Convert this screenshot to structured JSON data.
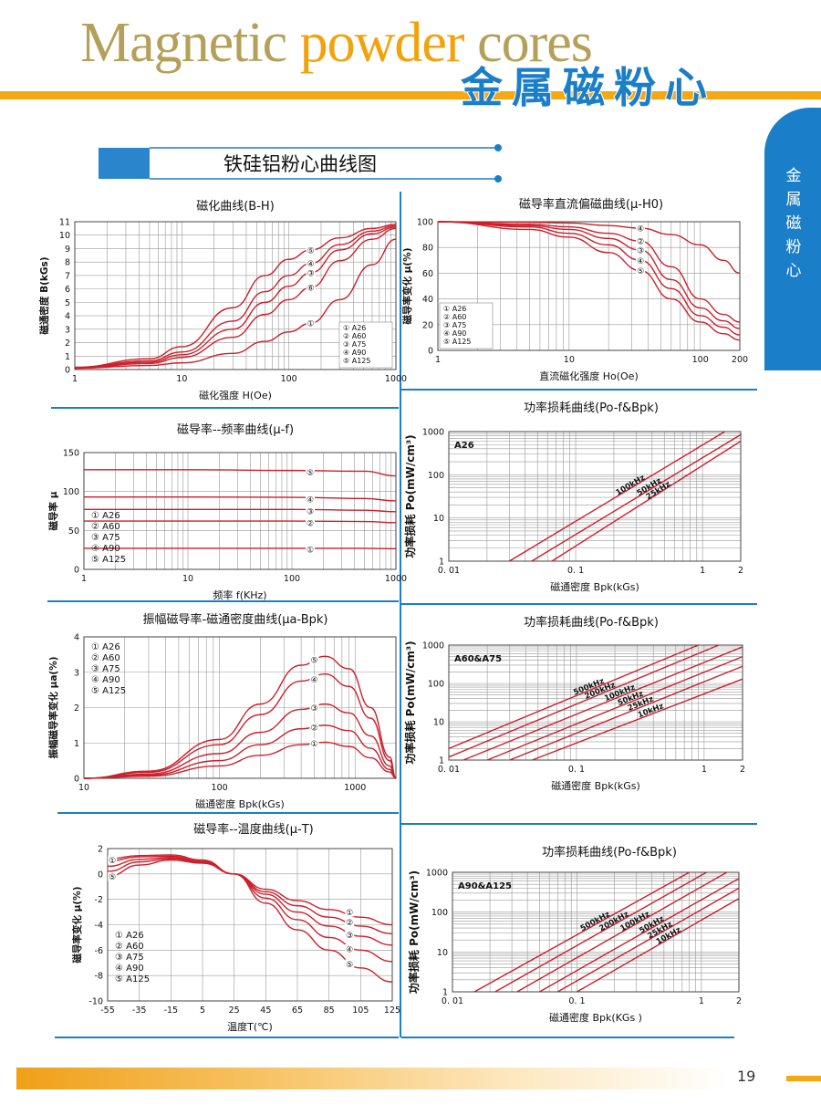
{
  "header": {
    "title_en_1": "Magnetic ",
    "title_en_2": "powder",
    "title_en_3": " cores",
    "title_cn": "金属磁粉心"
  },
  "side_tab": "金属磁粉心",
  "section_title": "铁硅铝粉心曲线图",
  "page_number": "19",
  "colors": {
    "curve": "#cc1f2b",
    "grid": "#999999",
    "accent": "#1a7fc8",
    "orange": "#f5a814"
  },
  "charts": [
    {
      "id": "bh",
      "type": "line",
      "title": "磁化曲线(B-H)",
      "xlabel": "磁化强度  H(Oe)",
      "ylabel": "磁通密度 B(kGs)",
      "xscale": "log",
      "xlim": [
        1,
        1000
      ],
      "ylim": [
        0,
        11
      ],
      "xticks": [
        "1",
        "10",
        "100",
        "1000"
      ],
      "yticks": [
        "0",
        "1",
        "2",
        "3",
        "4",
        "5",
        "6",
        "7",
        "8",
        "9",
        "10",
        "11"
      ],
      "legend": [
        "① A26",
        "② A60",
        "③ A75",
        "④ A90",
        "⑤ A125"
      ],
      "markers": [
        {
          "label": "①",
          "x": 160,
          "y": 3.45
        },
        {
          "label": "⑥",
          "x": 160,
          "y": 6.1
        },
        {
          "label": "③",
          "x": 160,
          "y": 7.2
        },
        {
          "label": "④",
          "x": 160,
          "y": 7.9
        },
        {
          "label": "⑤",
          "x": 160,
          "y": 8.9
        }
      ],
      "series": [
        {
          "name": "A26",
          "x": [
            1,
            5,
            10,
            30,
            60,
            100,
            160,
            300,
            600,
            1000
          ],
          "y": [
            0.1,
            0.3,
            0.5,
            1.2,
            2.1,
            2.8,
            3.45,
            5.2,
            7.8,
            9.7
          ]
        },
        {
          "name": "A60",
          "x": [
            1,
            5,
            10,
            30,
            60,
            100,
            160,
            300,
            600,
            1000
          ],
          "y": [
            0.1,
            0.45,
            0.9,
            2.4,
            4.1,
            5.2,
            6.1,
            8.1,
            9.7,
            10.5
          ]
        },
        {
          "name": "A75",
          "x": [
            1,
            5,
            10,
            30,
            60,
            100,
            160,
            300,
            600,
            1000
          ],
          "y": [
            0.12,
            0.55,
            1.1,
            3.0,
            5.0,
            6.2,
            7.2,
            8.9,
            10.1,
            10.6
          ]
        },
        {
          "name": "A90",
          "x": [
            1,
            5,
            10,
            30,
            60,
            100,
            160,
            300,
            600,
            1000
          ],
          "y": [
            0.14,
            0.65,
            1.3,
            3.6,
            5.8,
            7.0,
            7.9,
            9.3,
            10.3,
            10.7
          ]
        },
        {
          "name": "A125",
          "x": [
            1,
            5,
            10,
            30,
            60,
            100,
            160,
            300,
            600,
            1000
          ],
          "y": [
            0.17,
            0.8,
            1.7,
            4.6,
            7.0,
            8.2,
            8.9,
            9.8,
            10.5,
            10.8
          ]
        }
      ]
    },
    {
      "id": "mu_h",
      "type": "line",
      "title": "磁导率直流偏磁曲线(μ-H0)",
      "xlabel": "直流磁化强度   Ho(Oe)",
      "ylabel": "磁导率变化 μ(%)",
      "xscale": "log",
      "xlim": [
        1,
        200
      ],
      "ylim": [
        0,
        100
      ],
      "xticks": [
        "1",
        "10",
        "100",
        "200"
      ],
      "yticks": [
        "0",
        "20",
        "40",
        "60",
        "80",
        "100"
      ],
      "legend": [
        "① A26",
        "② A60",
        "③ A75",
        "④ A90",
        "⑤ A125"
      ],
      "markers": [
        {
          "label": "④",
          "x": 35,
          "y": 95
        },
        {
          "label": "②",
          "x": 35,
          "y": 85
        },
        {
          "label": "③",
          "x": 35,
          "y": 78
        },
        {
          "label": "④",
          "x": 35,
          "y": 70
        },
        {
          "label": "⑤",
          "x": 35,
          "y": 62
        }
      ],
      "series": [
        {
          "name": "A26",
          "x": [
            1,
            5,
            10,
            20,
            35,
            60,
            100,
            150,
            200
          ],
          "y": [
            100,
            99.5,
            99,
            97,
            95,
            90,
            82,
            70,
            60
          ]
        },
        {
          "name": "A60",
          "x": [
            1,
            5,
            10,
            20,
            35,
            60,
            100,
            150,
            200
          ],
          "y": [
            100,
            98,
            96,
            91,
            85,
            65,
            40,
            28,
            22
          ]
        },
        {
          "name": "A75",
          "x": [
            1,
            5,
            10,
            20,
            35,
            60,
            100,
            150,
            200
          ],
          "y": [
            100,
            97,
            94,
            87,
            78,
            55,
            33,
            23,
            17
          ]
        },
        {
          "name": "A90",
          "x": [
            1,
            5,
            10,
            20,
            35,
            60,
            100,
            150,
            200
          ],
          "y": [
            100,
            96,
            91,
            82,
            70,
            48,
            27,
            18,
            12
          ]
        },
        {
          "name": "A125",
          "x": [
            1,
            5,
            10,
            20,
            35,
            60,
            100,
            150,
            200
          ],
          "y": [
            100,
            94,
            88,
            76,
            62,
            40,
            22,
            13,
            8
          ]
        }
      ]
    },
    {
      "id": "mu_f",
      "type": "line",
      "title": "磁导率--频率曲线(μ-f)",
      "xlabel": "频率 f(KHz)",
      "ylabel": "磁导率 μ",
      "xscale": "log",
      "xlim": [
        1,
        1000
      ],
      "ylim": [
        0,
        150
      ],
      "xticks": [
        "1",
        "10",
        "100",
        "1000"
      ],
      "yticks": [
        "0",
        "50",
        "100",
        "150"
      ],
      "legend": [
        "① A26",
        "② A60",
        "③ A75",
        "④ A90",
        "⑤ A125"
      ],
      "markers": [
        {
          "label": "⑤",
          "x": 150,
          "y": 125
        },
        {
          "label": "④",
          "x": 150,
          "y": 90
        },
        {
          "label": "③",
          "x": 150,
          "y": 75
        },
        {
          "label": "②",
          "x": 150,
          "y": 60
        },
        {
          "label": "①",
          "x": 150,
          "y": 26
        }
      ],
      "series": [
        {
          "name": "A125",
          "x": [
            1,
            10,
            100,
            500,
            1000
          ],
          "y": [
            128,
            128,
            127,
            126,
            120
          ]
        },
        {
          "name": "A90",
          "x": [
            1,
            10,
            100,
            500,
            1000
          ],
          "y": [
            93,
            93,
            92.5,
            91,
            88
          ]
        },
        {
          "name": "A75",
          "x": [
            1,
            10,
            100,
            500,
            1000
          ],
          "y": [
            77,
            77,
            77,
            76,
            74
          ]
        },
        {
          "name": "A60",
          "x": [
            1,
            10,
            100,
            500,
            1000
          ],
          "y": [
            62,
            62,
            62,
            61.5,
            60
          ]
        },
        {
          "name": "A26",
          "x": [
            1,
            10,
            100,
            500,
            1000
          ],
          "y": [
            27,
            27,
            27,
            27,
            26.5
          ]
        }
      ]
    },
    {
      "id": "pl_a26",
      "type": "line",
      "title": "功率损耗曲线(Po-f&Bpk)",
      "xlabel": "磁通密度     Bpk(kGs)",
      "ylabel": "功率损耗 Po(mW/cm³)",
      "xscale": "log",
      "yscale": "log",
      "xlim": [
        0.01,
        2
      ],
      "ylim": [
        1,
        1000
      ],
      "xticks": [
        "0. 01",
        "0. 1",
        "1",
        "2"
      ],
      "yticks": [
        "1",
        "10",
        "100",
        "1000"
      ],
      "inner_label": "A26",
      "series": [
        {
          "name": "100kHz",
          "x": [
            0.03,
            1.5
          ],
          "y": [
            1,
            1000
          ]
        },
        {
          "name": "50kHz",
          "x": [
            0.045,
            2
          ],
          "y": [
            1,
            850
          ]
        },
        {
          "name": "25kHz",
          "x": [
            0.065,
            2
          ],
          "y": [
            1,
            600
          ]
        }
      ]
    },
    {
      "id": "mua",
      "type": "line",
      "title": "振幅磁导率-磁通密度曲线(μa-Bpk)",
      "xlabel": "磁通密度     Bpk(kGs)",
      "ylabel": "振幅磁导率变化 μa(%)",
      "xscale": "log",
      "xlim": [
        10,
        2000
      ],
      "ylim": [
        0,
        4
      ],
      "xticks": [
        "10",
        "100",
        "1000"
      ],
      "yticks": [
        "0",
        "1",
        "2",
        "3",
        "4"
      ],
      "legend": [
        "① A26",
        "② A60",
        "③ A75",
        "④ A90",
        "⑤ A125"
      ],
      "markers": [
        {
          "label": "⑤",
          "x": 500,
          "y": 3.35
        },
        {
          "label": "④",
          "x": 500,
          "y": 2.8
        },
        {
          "label": "③",
          "x": 500,
          "y": 2.0
        },
        {
          "label": "②",
          "x": 500,
          "y": 1.45
        },
        {
          "label": "①",
          "x": 500,
          "y": 1.0
        }
      ],
      "series": [
        {
          "name": "A125",
          "x": [
            10,
            30,
            100,
            200,
            400,
            600,
            900,
            1300,
            1800,
            2000
          ],
          "y": [
            0,
            0.2,
            1.1,
            2.1,
            3.2,
            3.45,
            3.1,
            2.0,
            0.6,
            0
          ]
        },
        {
          "name": "A90",
          "x": [
            10,
            30,
            100,
            200,
            400,
            600,
            900,
            1300,
            1800,
            2000
          ],
          "y": [
            0,
            0.17,
            0.95,
            1.8,
            2.75,
            2.95,
            2.6,
            1.7,
            0.5,
            0
          ]
        },
        {
          "name": "A75",
          "x": [
            10,
            30,
            100,
            200,
            400,
            600,
            900,
            1300,
            1800,
            2000
          ],
          "y": [
            0,
            0.12,
            0.7,
            1.3,
            1.95,
            2.1,
            1.85,
            1.2,
            0.35,
            0
          ]
        },
        {
          "name": "A60",
          "x": [
            10,
            30,
            100,
            200,
            400,
            600,
            900,
            1300,
            1800,
            2000
          ],
          "y": [
            0,
            0.09,
            0.5,
            0.95,
            1.4,
            1.5,
            1.35,
            0.85,
            0.25,
            0
          ]
        },
        {
          "name": "A26",
          "x": [
            10,
            30,
            100,
            200,
            400,
            600,
            900,
            1300,
            1800,
            2000
          ],
          "y": [
            0,
            0.06,
            0.35,
            0.65,
            0.95,
            1.02,
            0.9,
            0.58,
            0.18,
            0
          ]
        }
      ]
    },
    {
      "id": "pl_a60",
      "type": "line",
      "title": "功率损耗曲线(Po-f&Bpk)",
      "xlabel": "磁通密度     Bpk(kGs)",
      "ylabel": "功率损耗 Po(mW/cm³)",
      "xscale": "log",
      "yscale": "log",
      "xlim": [
        0.01,
        2
      ],
      "ylim": [
        1,
        1000
      ],
      "xticks": [
        "0. 01",
        "0. 1",
        "1",
        "2"
      ],
      "yticks": [
        "1",
        "10",
        "100",
        "1000"
      ],
      "inner_label": "A60&A75",
      "series": [
        {
          "name": "500kHz",
          "x": [
            0.01,
            0.9
          ],
          "y": [
            2,
            1000
          ]
        },
        {
          "name": "200kHz",
          "x": [
            0.01,
            1.3
          ],
          "y": [
            1.2,
            1000
          ]
        },
        {
          "name": "100kHz",
          "x": [
            0.013,
            2
          ],
          "y": [
            1,
            900
          ]
        },
        {
          "name": "50kHz",
          "x": [
            0.02,
            2
          ],
          "y": [
            1,
            500
          ]
        },
        {
          "name": "25kHz",
          "x": [
            0.03,
            2
          ],
          "y": [
            1,
            280
          ]
        },
        {
          "name": "10kHz",
          "x": [
            0.045,
            2
          ],
          "y": [
            1,
            130
          ]
        }
      ]
    },
    {
      "id": "mu_t",
      "type": "line",
      "title": "磁导率--温度曲线(μ-T)",
      "xlabel": "温度T(℃)",
      "ylabel": "磁导率变化 μ(%)",
      "xlim": [
        -55,
        125
      ],
      "ylim": [
        -10,
        2
      ],
      "xticks": [
        "-55",
        "-35",
        "-15",
        "5",
        "25",
        "45",
        "65",
        "85",
        "105",
        "125"
      ],
      "yticks": [
        "-10",
        "-8",
        "-6",
        "-4",
        "-2",
        "0",
        "2"
      ],
      "legend": [
        "① A26",
        "② A60",
        "③ A75",
        "④ A90",
        "⑤ A125"
      ],
      "markers": [
        {
          "label": "①",
          "x": -52,
          "y": 1.1
        },
        {
          "label": "⑤",
          "x": -52,
          "y": -0.2
        },
        {
          "label": "①",
          "x": 98,
          "y": -3.0
        },
        {
          "label": "②",
          "x": 98,
          "y": -3.8
        },
        {
          "label": "③",
          "x": 98,
          "y": -4.8
        },
        {
          "label": "④",
          "x": 98,
          "y": -5.9
        },
        {
          "label": "⑤",
          "x": 98,
          "y": -7.1
        }
      ],
      "series": [
        {
          "name": "A26",
          "x": [
            -55,
            -35,
            -15,
            5,
            25,
            45,
            65,
            85,
            105,
            125
          ],
          "y": [
            1.2,
            1.45,
            1.5,
            1.1,
            0,
            -1.2,
            -2.1,
            -2.8,
            -3.4,
            -4.0
          ]
        },
        {
          "name": "A60",
          "x": [
            -55,
            -35,
            -15,
            5,
            25,
            45,
            65,
            85,
            105,
            125
          ],
          "y": [
            1.0,
            1.35,
            1.4,
            1.0,
            0,
            -1.4,
            -2.5,
            -3.4,
            -4.1,
            -4.7
          ]
        },
        {
          "name": "A75",
          "x": [
            -55,
            -35,
            -15,
            5,
            25,
            45,
            65,
            85,
            105,
            125
          ],
          "y": [
            0.6,
            1.15,
            1.3,
            0.95,
            0,
            -1.6,
            -3.0,
            -4.1,
            -4.9,
            -5.6
          ]
        },
        {
          "name": "A90",
          "x": [
            -55,
            -35,
            -15,
            5,
            25,
            45,
            65,
            85,
            105,
            125
          ],
          "y": [
            0.2,
            0.95,
            1.2,
            0.9,
            0,
            -1.9,
            -3.6,
            -5.0,
            -6.0,
            -6.9
          ]
        },
        {
          "name": "A125",
          "x": [
            -55,
            -35,
            -15,
            5,
            25,
            45,
            65,
            85,
            105,
            125
          ],
          "y": [
            -0.2,
            0.7,
            1.1,
            0.85,
            0,
            -2.3,
            -4.4,
            -6.0,
            -7.4,
            -8.5
          ]
        }
      ]
    },
    {
      "id": "pl_a90",
      "type": "line",
      "title": "功率损耗曲线(Po-f&Bpk)",
      "xlabel": "磁通密度 Bpk(KGs )",
      "ylabel": "功率损耗 Po(mW/cm³)",
      "xscale": "log",
      "yscale": "log",
      "xlim": [
        0.01,
        2
      ],
      "ylim": [
        1,
        1000
      ],
      "xticks": [
        "0. 01",
        "0. 1",
        "1",
        "2"
      ],
      "yticks": [
        "1",
        "10",
        "100",
        "1000"
      ],
      "inner_label": "A90&A125",
      "series": [
        {
          "name": "500kHz",
          "x": [
            0.015,
            0.8
          ],
          "y": [
            1,
            1000
          ]
        },
        {
          "name": "200kHz",
          "x": [
            0.022,
            1.1
          ],
          "y": [
            1,
            1000
          ]
        },
        {
          "name": "100kHz",
          "x": [
            0.033,
            1.6
          ],
          "y": [
            1,
            1000
          ]
        },
        {
          "name": "50kHz",
          "x": [
            0.05,
            2
          ],
          "y": [
            1,
            700
          ]
        },
        {
          "name": "25kHz",
          "x": [
            0.07,
            2
          ],
          "y": [
            1,
            400
          ]
        },
        {
          "name": "10kHz",
          "x": [
            0.1,
            2
          ],
          "y": [
            1,
            220
          ]
        }
      ]
    }
  ]
}
